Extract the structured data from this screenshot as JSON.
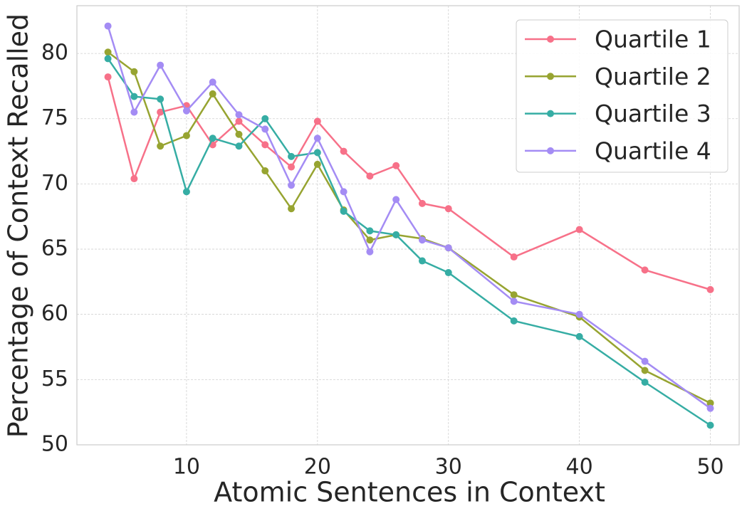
{
  "chart_data": {
    "type": "line",
    "xlabel": "Atomic Sentences in Context",
    "ylabel": "Percentage of Context Recalled",
    "x": [
      4,
      6,
      8,
      10,
      12,
      14,
      16,
      18,
      20,
      22,
      24,
      26,
      28,
      30,
      35,
      40,
      45,
      50
    ],
    "series": [
      {
        "name": "Quartile 1",
        "color": "#f77189",
        "values": [
          78.2,
          70.4,
          75.5,
          76.0,
          73.0,
          74.8,
          73.0,
          71.3,
          74.8,
          72.5,
          70.6,
          71.4,
          68.5,
          68.1,
          64.4,
          66.5,
          63.4,
          61.9
        ]
      },
      {
        "name": "Quartile 2",
        "color": "#97a431",
        "values": [
          80.1,
          78.6,
          72.9,
          73.7,
          76.9,
          73.8,
          71.0,
          68.1,
          71.5,
          68.0,
          65.7,
          66.1,
          65.8,
          65.1,
          61.5,
          59.8,
          55.7,
          53.2
        ]
      },
      {
        "name": "Quartile 3",
        "color": "#36ada4",
        "values": [
          79.6,
          76.7,
          76.5,
          69.4,
          73.5,
          72.9,
          75.0,
          72.1,
          72.4,
          67.9,
          66.4,
          66.1,
          64.1,
          63.2,
          59.5,
          58.3,
          54.8,
          51.5
        ]
      },
      {
        "name": "Quartile 4",
        "color": "#a48cf4",
        "values": [
          82.1,
          75.5,
          79.1,
          75.6,
          77.8,
          75.3,
          74.2,
          69.9,
          73.5,
          69.4,
          64.8,
          68.8,
          65.7,
          65.1,
          61.0,
          60.0,
          56.4,
          52.8
        ]
      }
    ],
    "xlim": [
      1.63,
      52.2
    ],
    "ylim": [
      50,
      83.66
    ],
    "xticks": [
      10,
      20,
      30,
      40,
      50
    ],
    "yticks": [
      50,
      55,
      60,
      65,
      70,
      75,
      80
    ],
    "grid": true,
    "legend": "upper right"
  }
}
